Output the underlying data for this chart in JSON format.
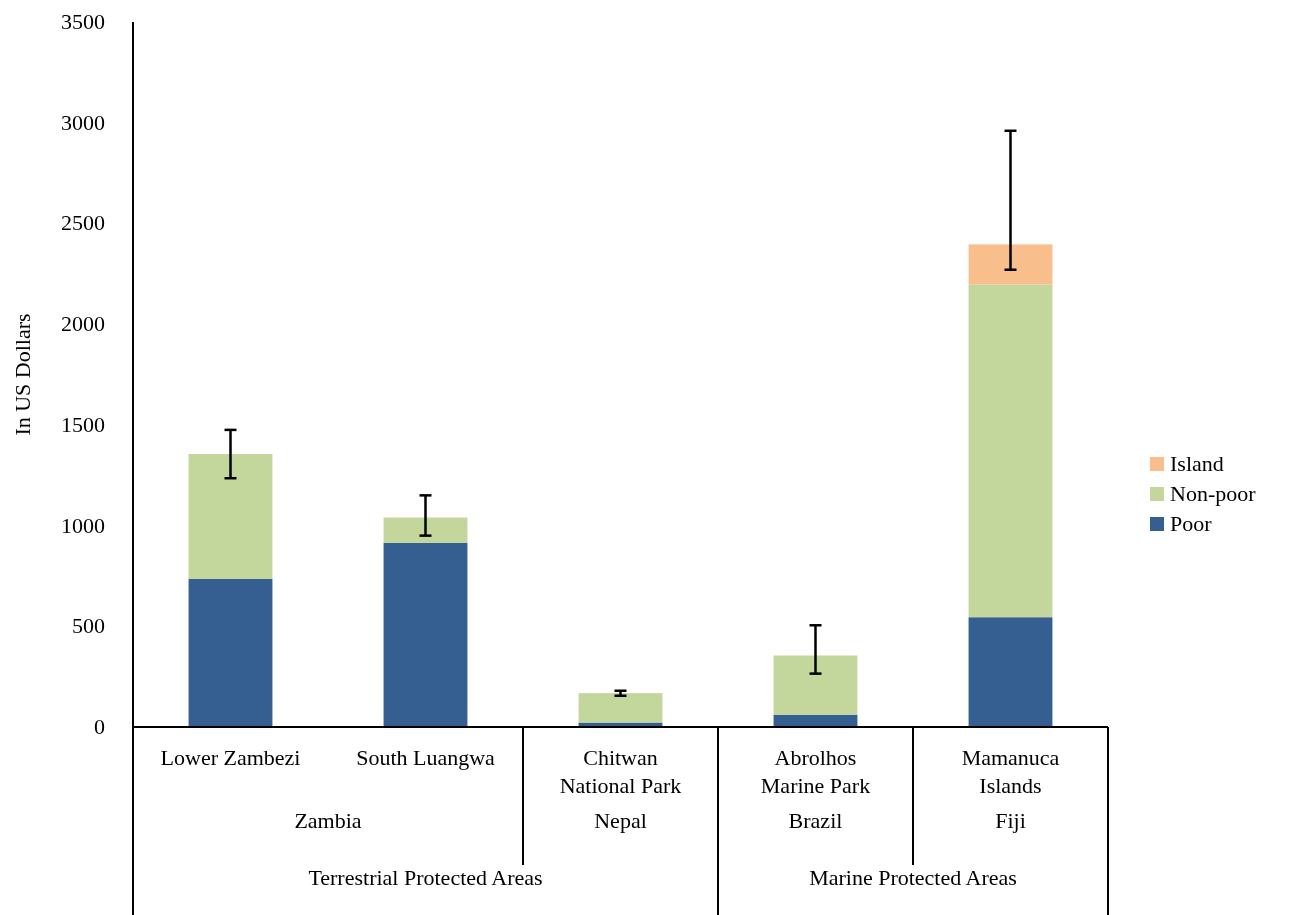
{
  "chart_data": {
    "type": "bar",
    "stacked": true,
    "ylabel": "In US Dollars",
    "categories": [
      "Lower Zambezi",
      "South Luangwa",
      "Chitwan National Park",
      "Abrolhos Marine Park",
      "Mamanuca Islands"
    ],
    "series": [
      {
        "name": "Poor",
        "color": "#355f91",
        "values": [
          735,
          914,
          22,
          61,
          545
        ]
      },
      {
        "name": "Non-poor",
        "color": "#c3d69b",
        "values": [
          620,
          126,
          146,
          294,
          1652
        ],
        "errors": [
          [
            1235,
            1475
          ],
          [
            950,
            1150
          ],
          [
            155,
            180
          ],
          [
            265,
            505
          ],
          null
        ]
      },
      {
        "name": "Island",
        "color": "#f8bf8d",
        "values": [
          null,
          null,
          null,
          null,
          199
        ],
        "errors": [
          null,
          null,
          null,
          null,
          [
            2270,
            2960
          ]
        ]
      }
    ],
    "annotations": [
      "Zambia",
      "Nepal",
      "Brazil",
      "Fiji",
      "Terrestrial Protected Areas",
      "Marine Protected Areas"
    ],
    "ylim": [
      0,
      3500
    ],
    "yticks": [
      0,
      500,
      1000,
      1500,
      2000,
      2500,
      3000,
      3500
    ],
    "legend": "right"
  }
}
